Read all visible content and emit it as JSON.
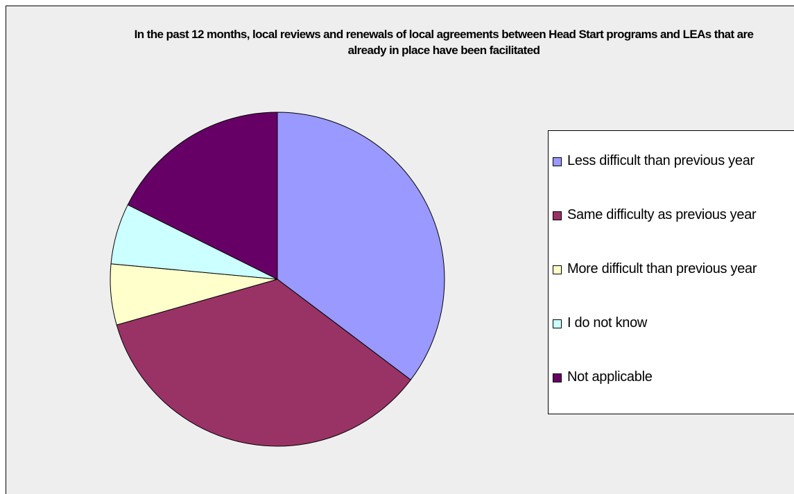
{
  "chart_data": {
    "type": "pie",
    "title": "In the past 12 months, local reviews and renewals of local agreements between Head Start programs and LEAs that are already in place have been facilitated",
    "categories": [
      "Less difficult than previous year",
      "Same difficulty as previous year",
      "More difficult than previous year",
      "I do not know",
      "Not applicable"
    ],
    "values": [
      6,
      6,
      1,
      1,
      3
    ],
    "colors": [
      "#9999ff",
      "#993366",
      "#ffffcc",
      "#ccffff",
      "#660066"
    ],
    "legend": "right"
  }
}
